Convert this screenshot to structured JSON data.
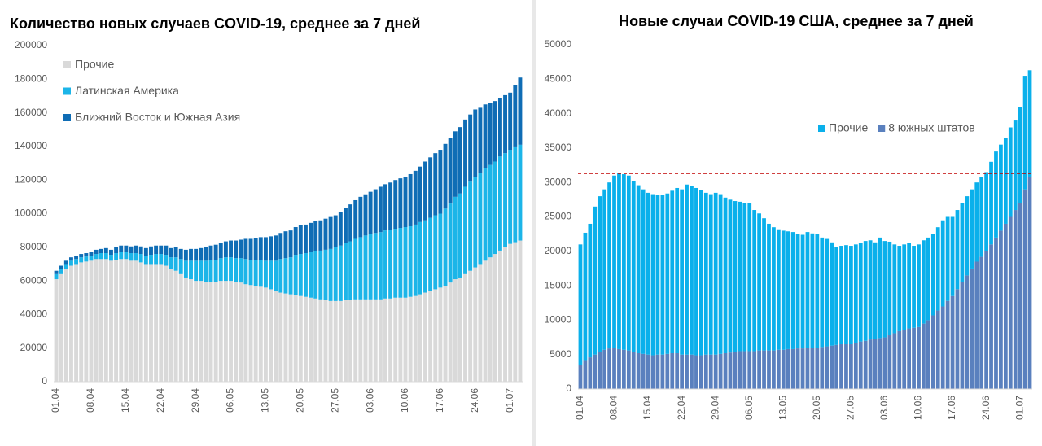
{
  "chart_data": [
    {
      "type": "stacked_bar",
      "title": "Количество новых случаев COVID-19, среднее за 7 дней",
      "categories": [
        "01.04",
        null,
        null,
        null,
        null,
        null,
        null,
        "08.04",
        null,
        null,
        null,
        null,
        null,
        null,
        "15.04",
        null,
        null,
        null,
        null,
        null,
        null,
        "22.04",
        null,
        null,
        null,
        null,
        null,
        null,
        "29.04",
        null,
        null,
        null,
        null,
        null,
        null,
        "06.05",
        null,
        null,
        null,
        null,
        null,
        null,
        "13.05",
        null,
        null,
        null,
        null,
        null,
        null,
        "20.05",
        null,
        null,
        null,
        null,
        null,
        null,
        "27.05",
        null,
        null,
        null,
        null,
        null,
        null,
        "03.06",
        null,
        null,
        null,
        null,
        null,
        null,
        "10.06",
        null,
        null,
        null,
        null,
        null,
        null,
        "17.06",
        null,
        null,
        null,
        null,
        null,
        null,
        "24.06",
        null,
        null,
        null,
        null,
        null,
        null,
        "01.07",
        null,
        null
      ],
      "series": [
        {
          "name": "Прочие",
          "color": "#d9d9d9",
          "values": [
            61000,
            64000,
            67000,
            69000,
            70000,
            71000,
            71500,
            72000,
            73000,
            73000,
            73000,
            72000,
            72500,
            73000,
            73000,
            72000,
            72000,
            71000,
            70000,
            70000,
            70000,
            70000,
            69000,
            67000,
            66000,
            64000,
            62000,
            61000,
            60000,
            60000,
            59500,
            59500,
            59500,
            60000,
            60000,
            60000,
            59500,
            59000,
            58000,
            57500,
            57000,
            56500,
            56000,
            55000,
            54000,
            53000,
            52500,
            52000,
            51500,
            51000,
            50500,
            50000,
            49500,
            49000,
            48500,
            48000,
            48000,
            48000,
            48500,
            48500,
            49000,
            49000,
            49000,
            49000,
            49000,
            49000,
            49500,
            49500,
            50000,
            50000,
            50000,
            50500,
            51000,
            52000,
            53000,
            54000,
            55000,
            56000,
            57000,
            59000,
            61000,
            62000,
            64000,
            66000,
            68000,
            70000,
            72000,
            74000,
            76000,
            78000,
            80000,
            82000,
            83000,
            84000
          ]
        },
        {
          "name": "Латинская Америка",
          "color": "#1cb5e8",
          "values": [
            3000,
            3000,
            3000,
            3000,
            3000,
            3000,
            3000,
            3000,
            3000,
            3500,
            3500,
            3500,
            4000,
            4000,
            4000,
            4500,
            4500,
            5000,
            5000,
            5500,
            6000,
            6000,
            6500,
            7000,
            8000,
            9000,
            10000,
            11000,
            12000,
            12000,
            12500,
            13000,
            13000,
            13500,
            14000,
            14000,
            14000,
            14500,
            15000,
            15000,
            15500,
            16000,
            16000,
            17000,
            18000,
            20000,
            21000,
            22000,
            24000,
            25000,
            26000,
            27000,
            28000,
            29000,
            30000,
            31000,
            32000,
            33000,
            34000,
            35000,
            36000,
            37000,
            38000,
            39000,
            39500,
            40000,
            40500,
            41000,
            41000,
            41500,
            42000,
            42000,
            42500,
            43000,
            43000,
            43500,
            44000,
            44000,
            46000,
            47000,
            49000,
            50000,
            52000,
            53000,
            54000,
            54000,
            55000,
            55000,
            55000,
            56000,
            56000,
            56000,
            56500,
            57000
          ]
        },
        {
          "name": "Ближний Восток и Южная Азия",
          "color": "#0f6db5",
          "values": [
            2000,
            2000,
            2000,
            2000,
            2000,
            2000,
            2000,
            2000,
            2500,
            2500,
            3000,
            3000,
            3500,
            4000,
            4000,
            4000,
            4500,
            4500,
            4500,
            5000,
            5000,
            5000,
            5500,
            5500,
            6000,
            6000,
            6500,
            7000,
            7000,
            7500,
            8000,
            8500,
            9000,
            9000,
            9500,
            10000,
            10500,
            11000,
            12000,
            12500,
            13000,
            13500,
            14000,
            14500,
            15000,
            15500,
            16000,
            16000,
            16500,
            17000,
            17000,
            17500,
            18000,
            18000,
            18500,
            19000,
            19000,
            20000,
            21000,
            22000,
            23000,
            24000,
            24500,
            25000,
            26000,
            27000,
            27500,
            28000,
            29000,
            29500,
            30000,
            31000,
            32000,
            33000,
            35000,
            36000,
            37000,
            38000,
            38500,
            39000,
            39000,
            39500,
            40000,
            40000,
            40000,
            39000,
            38000,
            37000,
            36000,
            35000,
            34500,
            34000,
            37000,
            40000
          ]
        }
      ],
      "ylim": [
        0,
        200000
      ],
      "yticks": [
        0,
        20000,
        40000,
        60000,
        80000,
        100000,
        120000,
        140000,
        160000,
        180000,
        200000
      ],
      "legend": {
        "position": "top-left",
        "direction": "vertical"
      }
    },
    {
      "type": "stacked_bar",
      "title": "Новые случаи COVID-19  США, среднее за 7 дней",
      "categories": [
        "01.04",
        null,
        null,
        null,
        null,
        null,
        null,
        "08.04",
        null,
        null,
        null,
        null,
        null,
        null,
        "15.04",
        null,
        null,
        null,
        null,
        null,
        null,
        "22.04",
        null,
        null,
        null,
        null,
        null,
        null,
        "29.04",
        null,
        null,
        null,
        null,
        null,
        null,
        "06.05",
        null,
        null,
        null,
        null,
        null,
        null,
        "13.05",
        null,
        null,
        null,
        null,
        null,
        null,
        "20.05",
        null,
        null,
        null,
        null,
        null,
        null,
        "27.05",
        null,
        null,
        null,
        null,
        null,
        null,
        "03.06",
        null,
        null,
        null,
        null,
        null,
        null,
        "10.06",
        null,
        null,
        null,
        null,
        null,
        null,
        "17.06",
        null,
        null,
        null,
        null,
        null,
        null,
        "24.06",
        null,
        null,
        null,
        null,
        null,
        null,
        "01.07",
        null,
        null
      ],
      "series": [
        {
          "name": "8 южных штатов",
          "color": "#5a80be",
          "values": [
            3500,
            4200,
            4600,
            5000,
            5400,
            5700,
            5900,
            6000,
            5800,
            5700,
            5600,
            5400,
            5200,
            5100,
            5000,
            4900,
            5000,
            5000,
            5100,
            5200,
            5200,
            5000,
            5000,
            5000,
            4900,
            4900,
            5000,
            5000,
            5000,
            5100,
            5200,
            5300,
            5400,
            5500,
            5500,
            5500,
            5500,
            5600,
            5600,
            5600,
            5600,
            5700,
            5700,
            5800,
            5800,
            5900,
            5900,
            6000,
            6000,
            6000,
            6100,
            6200,
            6300,
            6400,
            6500,
            6500,
            6500,
            6700,
            6900,
            7000,
            7200,
            7300,
            7400,
            7500,
            7800,
            8100,
            8400,
            8600,
            8800,
            8900,
            9000,
            9500,
            10000,
            10700,
            11400,
            12000,
            12800,
            13500,
            14500,
            15500,
            16500,
            17500,
            18500,
            19200,
            20000,
            21000,
            22000,
            23000,
            24000,
            25000,
            26000,
            27000,
            29000,
            30800
          ]
        },
        {
          "name": "Прочие",
          "color": "#0ab0eb",
          "values": [
            17500,
            18500,
            19400,
            21500,
            22600,
            23300,
            24100,
            25000,
            25600,
            25500,
            25400,
            24800,
            24400,
            23900,
            23500,
            23400,
            23200,
            23200,
            23300,
            23600,
            24000,
            24000,
            24700,
            24500,
            24300,
            24000,
            23500,
            23300,
            23500,
            23200,
            22600,
            22200,
            21900,
            21700,
            21500,
            21500,
            20500,
            19900,
            19200,
            18400,
            17900,
            17500,
            17300,
            17100,
            17000,
            16600,
            16500,
            16800,
            16600,
            16500,
            15900,
            15600,
            15000,
            14200,
            14300,
            14400,
            14300,
            14300,
            14300,
            14500,
            14400,
            14000,
            14600,
            14000,
            13600,
            12900,
            12400,
            12400,
            12400,
            11900,
            12000,
            12100,
            12000,
            11800,
            12100,
            12500,
            12200,
            11500,
            11500,
            11500,
            11500,
            11500,
            11500,
            11600,
            11500,
            12000,
            12500,
            12500,
            12500,
            13000,
            13000,
            14000,
            16500,
            15500
          ]
        }
      ],
      "ylim": [
        0,
        50000
      ],
      "yticks": [
        0,
        5000,
        10000,
        15000,
        20000,
        25000,
        30000,
        35000,
        40000,
        45000,
        50000
      ],
      "hline": {
        "value": 31300,
        "color": "#c00000"
      },
      "legend": {
        "position": "right",
        "direction": "horizontal"
      }
    }
  ]
}
